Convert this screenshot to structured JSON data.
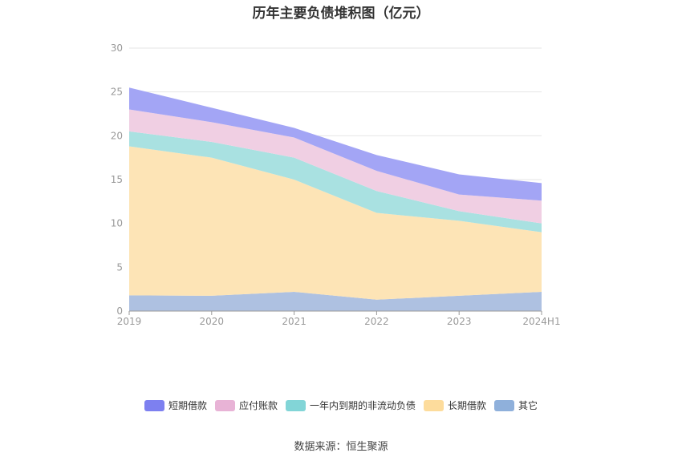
{
  "chart_data": {
    "type": "area",
    "stacked": true,
    "title": "历年主要负债堆积图（亿元）",
    "categories": [
      "2019",
      "2020",
      "2021",
      "2022",
      "2023",
      "2024H1"
    ],
    "ylim": [
      0,
      30
    ],
    "yticks": [
      0,
      5,
      10,
      15,
      20,
      25,
      30
    ],
    "grid": true,
    "legend_position": "bottom",
    "series": [
      {
        "name": "其它",
        "color": "#aec1e1",
        "legend_color": "#8fb0db",
        "values": [
          1.8,
          1.75,
          2.2,
          1.3,
          1.75,
          2.2
        ]
      },
      {
        "name": "长期借款",
        "color": "#fde4b6",
        "legend_color": "#fddc9c",
        "values": [
          17.0,
          15.75,
          12.8,
          9.9,
          8.55,
          6.8
        ]
      },
      {
        "name": "一年内到期的非流动负债",
        "color": "#a9e1e1",
        "legend_color": "#82d5d7",
        "values": [
          1.7,
          1.8,
          2.5,
          2.5,
          1.1,
          1.0
        ]
      },
      {
        "name": "应付账款",
        "color": "#f0cfe3",
        "legend_color": "#e8b3d6",
        "values": [
          2.5,
          2.25,
          2.3,
          2.3,
          1.9,
          2.6
        ]
      },
      {
        "name": "短期借款",
        "color": "#a3a5f5",
        "legend_color": "#7d80f0",
        "values": [
          2.5,
          1.65,
          1.1,
          1.8,
          2.3,
          2.0
        ]
      }
    ],
    "legend_order": [
      "短期借款",
      "应付账款",
      "一年内到期的非流动负债",
      "长期借款",
      "其它"
    ]
  },
  "source": "数据来源：恒生聚源"
}
